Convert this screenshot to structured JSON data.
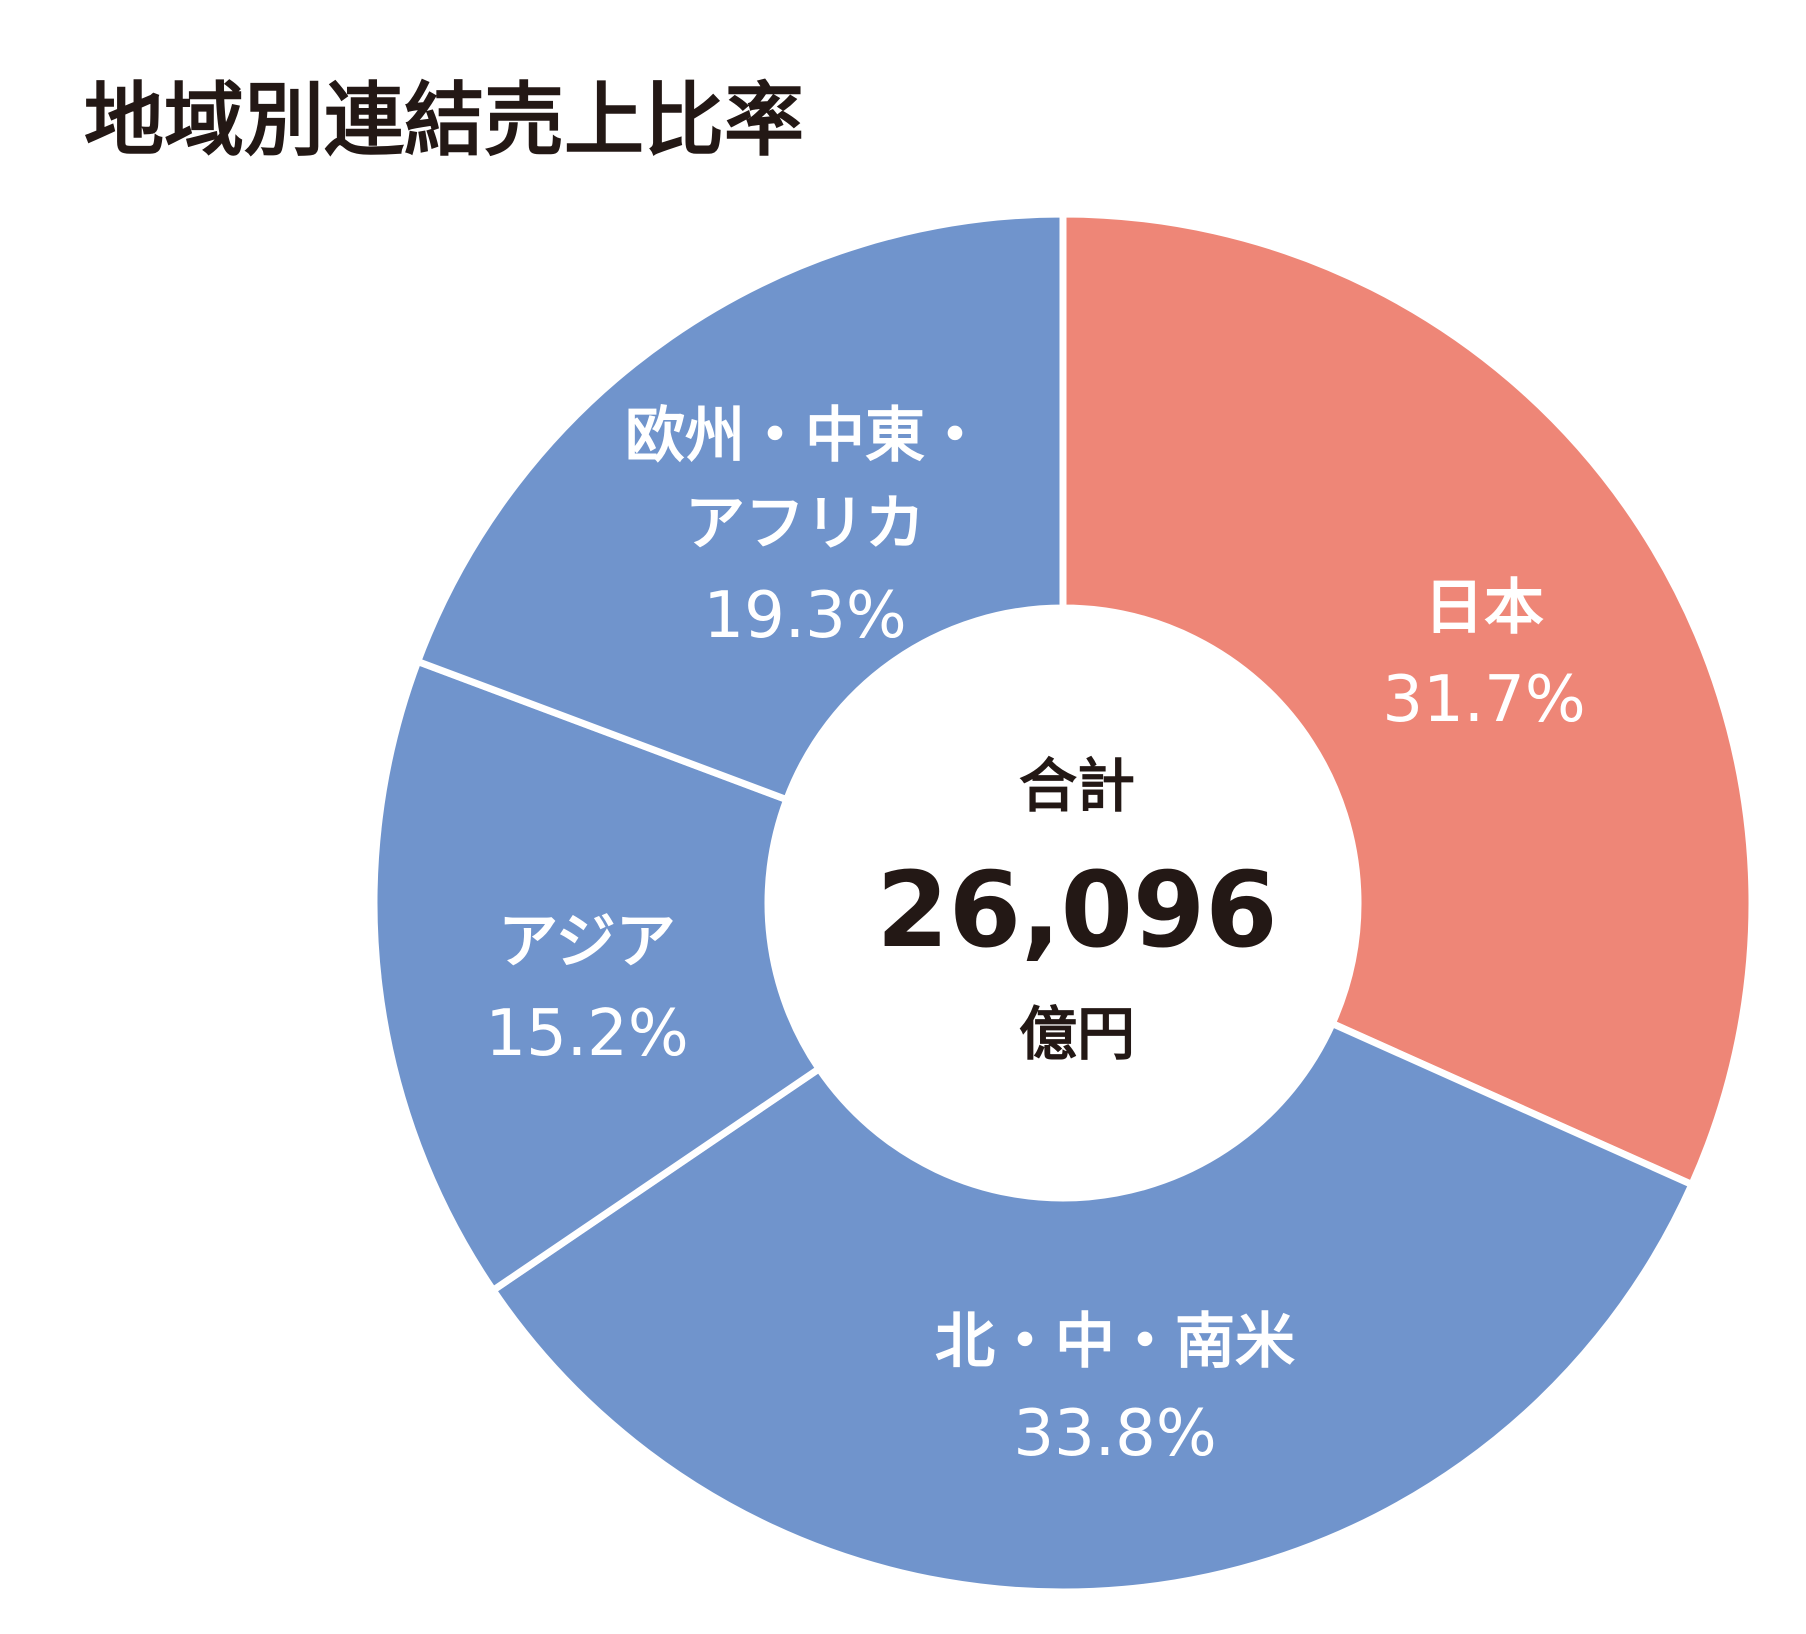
{
  "chart_data": {
    "type": "donut",
    "title": "地域別連結売上比率",
    "categories": [
      "日本",
      "北・中・南米",
      "アジア",
      "欧州・中東・\nアフリカ"
    ],
    "values": [
      31.7,
      33.8,
      15.2,
      19.3
    ],
    "value_labels": [
      "31.7%",
      "33.8%",
      "15.2%",
      "19.3%"
    ],
    "colors": [
      "#ee8677",
      "#7094cc",
      "#7094cc",
      "#7094cc"
    ],
    "center_title": "合計",
    "center_value": "26,096",
    "center_unit": "億円"
  }
}
